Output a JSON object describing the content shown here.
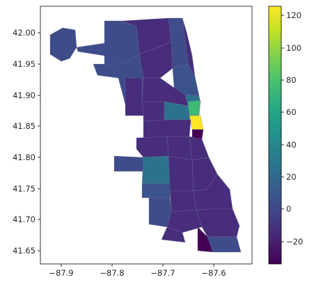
{
  "map": {
    "x_ticks": [
      "−87.9",
      "−87.8",
      "−87.7",
      "−87.6"
    ],
    "y_ticks": [
      "42.00",
      "41.95",
      "41.90",
      "41.85",
      "41.80",
      "41.75",
      "41.70",
      "41.65"
    ],
    "colormap": "viridis",
    "xlim": [
      -87.96,
      -87.5
    ],
    "ylim": [
      41.625,
      42.035
    ]
  },
  "colorbar": {
    "ticks": [
      "−20",
      "0",
      "20",
      "40",
      "60",
      "80",
      "100",
      "120"
    ],
    "range": [
      -35,
      125
    ]
  },
  "colors": {
    "deep_purple": "#440154",
    "purple": "#472d7b",
    "indigo": "#3b528b",
    "blue": "#3e4c8a",
    "teal": "#2c728e",
    "green": "#3cbb75",
    "yellow": "#fde725"
  }
}
